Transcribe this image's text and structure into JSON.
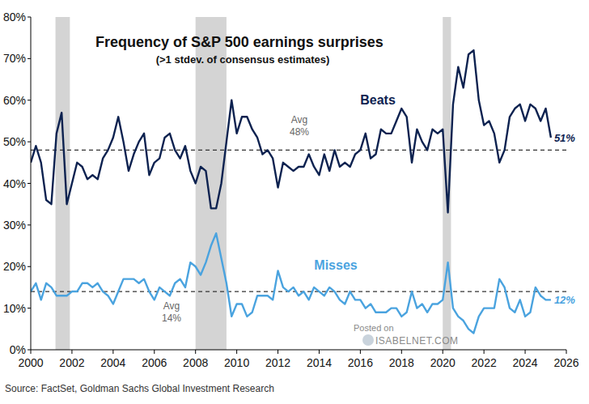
{
  "chart_data": {
    "type": "line",
    "title": "Frequency of S&P 500 earnings surprises",
    "subtitle": "(>1 stdev. of consensus estimates)",
    "source": "Source: FactSet, Goldman Sachs Global Investment Research",
    "watermark": [
      "Posted on",
      "ISABELNET.COM"
    ],
    "grid": false,
    "x": [
      2000,
      2000.25,
      2000.5,
      2000.75,
      2001,
      2001.25,
      2001.5,
      2001.75,
      2002,
      2002.25,
      2002.5,
      2002.75,
      2003,
      2003.25,
      2003.5,
      2003.75,
      2004,
      2004.25,
      2004.5,
      2004.75,
      2005,
      2005.25,
      2005.5,
      2005.75,
      2006,
      2006.25,
      2006.5,
      2006.75,
      2007,
      2007.25,
      2007.5,
      2007.75,
      2008,
      2008.25,
      2008.5,
      2008.75,
      2009,
      2009.25,
      2009.5,
      2009.75,
      2010,
      2010.25,
      2010.5,
      2010.75,
      2011,
      2011.25,
      2011.5,
      2011.75,
      2012,
      2012.25,
      2012.5,
      2012.75,
      2013,
      2013.25,
      2013.5,
      2013.75,
      2014,
      2014.25,
      2014.5,
      2014.75,
      2015,
      2015.25,
      2015.5,
      2015.75,
      2016,
      2016.25,
      2016.5,
      2016.75,
      2017,
      2017.25,
      2017.5,
      2017.75,
      2018,
      2018.25,
      2018.5,
      2018.75,
      2019,
      2019.25,
      2019.5,
      2019.75,
      2020,
      2020.25,
      2020.5,
      2020.75,
      2021,
      2021.25,
      2021.5,
      2021.75,
      2022,
      2022.25,
      2022.5,
      2022.75,
      2023,
      2023.25,
      2023.5,
      2023.75,
      2024,
      2024.25,
      2024.5,
      2024.75,
      2025,
      2025.25
    ],
    "xlim": [
      2000,
      2026
    ],
    "xticks": [
      2000,
      2002,
      2004,
      2006,
      2008,
      2010,
      2012,
      2014,
      2016,
      2018,
      2020,
      2022,
      2024,
      2026
    ],
    "ylim": [
      0,
      80
    ],
    "yticks": [
      {
        "value": 0,
        "label": "0%"
      },
      {
        "value": 10,
        "label": "10%"
      },
      {
        "value": 20,
        "label": "20%"
      },
      {
        "value": 30,
        "label": "30%"
      },
      {
        "value": 40,
        "label": "40%"
      },
      {
        "value": 50,
        "label": "50%"
      },
      {
        "value": 60,
        "label": "60%"
      },
      {
        "value": 70,
        "label": "70%"
      },
      {
        "value": 80,
        "label": "80%"
      }
    ],
    "recessions": [
      {
        "start": 2001.2,
        "end": 2001.9
      },
      {
        "start": 2008.0,
        "end": 2009.5
      },
      {
        "start": 2020.0,
        "end": 2020.4
      }
    ],
    "series": [
      {
        "name": "Beats",
        "color": "#0d2250",
        "values": [
          45,
          49,
          45,
          36,
          35,
          52,
          57,
          35,
          40,
          45,
          44,
          41,
          42,
          41,
          46,
          48,
          51,
          56,
          50,
          43,
          47,
          50,
          52,
          42,
          45,
          46,
          51,
          52,
          48,
          46,
          49,
          43,
          40,
          44,
          43,
          34,
          34,
          40,
          50,
          60,
          52,
          56,
          56,
          53,
          51,
          47,
          48,
          46,
          39,
          45,
          44,
          43,
          44,
          44,
          47,
          44,
          42,
          47,
          43,
          48,
          44,
          45,
          44,
          47,
          48,
          52,
          46,
          47,
          53,
          52,
          52,
          55,
          58,
          56,
          45,
          53,
          50,
          48,
          53,
          52,
          53,
          33,
          59,
          68,
          63,
          71,
          72,
          60,
          54,
          55,
          52,
          45,
          48,
          56,
          58,
          59,
          55,
          59,
          58,
          55,
          58,
          51
        ],
        "average": {
          "value": 48,
          "label": "Avg",
          "value_label": "48%"
        },
        "end_label": "51%"
      },
      {
        "name": "Misses",
        "color": "#4aa3df",
        "values": [
          14,
          16,
          12,
          16,
          15,
          13,
          13,
          13,
          14,
          14,
          16,
          16,
          15,
          16,
          14,
          13,
          11,
          14,
          17,
          17,
          17,
          16,
          17,
          14,
          12,
          15,
          14,
          13,
          16,
          17,
          15,
          21,
          20,
          18,
          21,
          25,
          28,
          22,
          16,
          8,
          11,
          11,
          8,
          9,
          13,
          13,
          13,
          12,
          19,
          15,
          14,
          15,
          13,
          14,
          12,
          15,
          14,
          13,
          15,
          14,
          12,
          11,
          14,
          12,
          12,
          10,
          11,
          9,
          9,
          9,
          10,
          10,
          8,
          9,
          14,
          10,
          11,
          9,
          11,
          11,
          12,
          21,
          10,
          8,
          7,
          5,
          4,
          8,
          10,
          10,
          10,
          17,
          15,
          10,
          9,
          12,
          8,
          9,
          15,
          13,
          12,
          12
        ],
        "average": {
          "value": 14,
          "label": "Avg",
          "value_label": "14%"
        },
        "end_label": "12%"
      }
    ]
  }
}
